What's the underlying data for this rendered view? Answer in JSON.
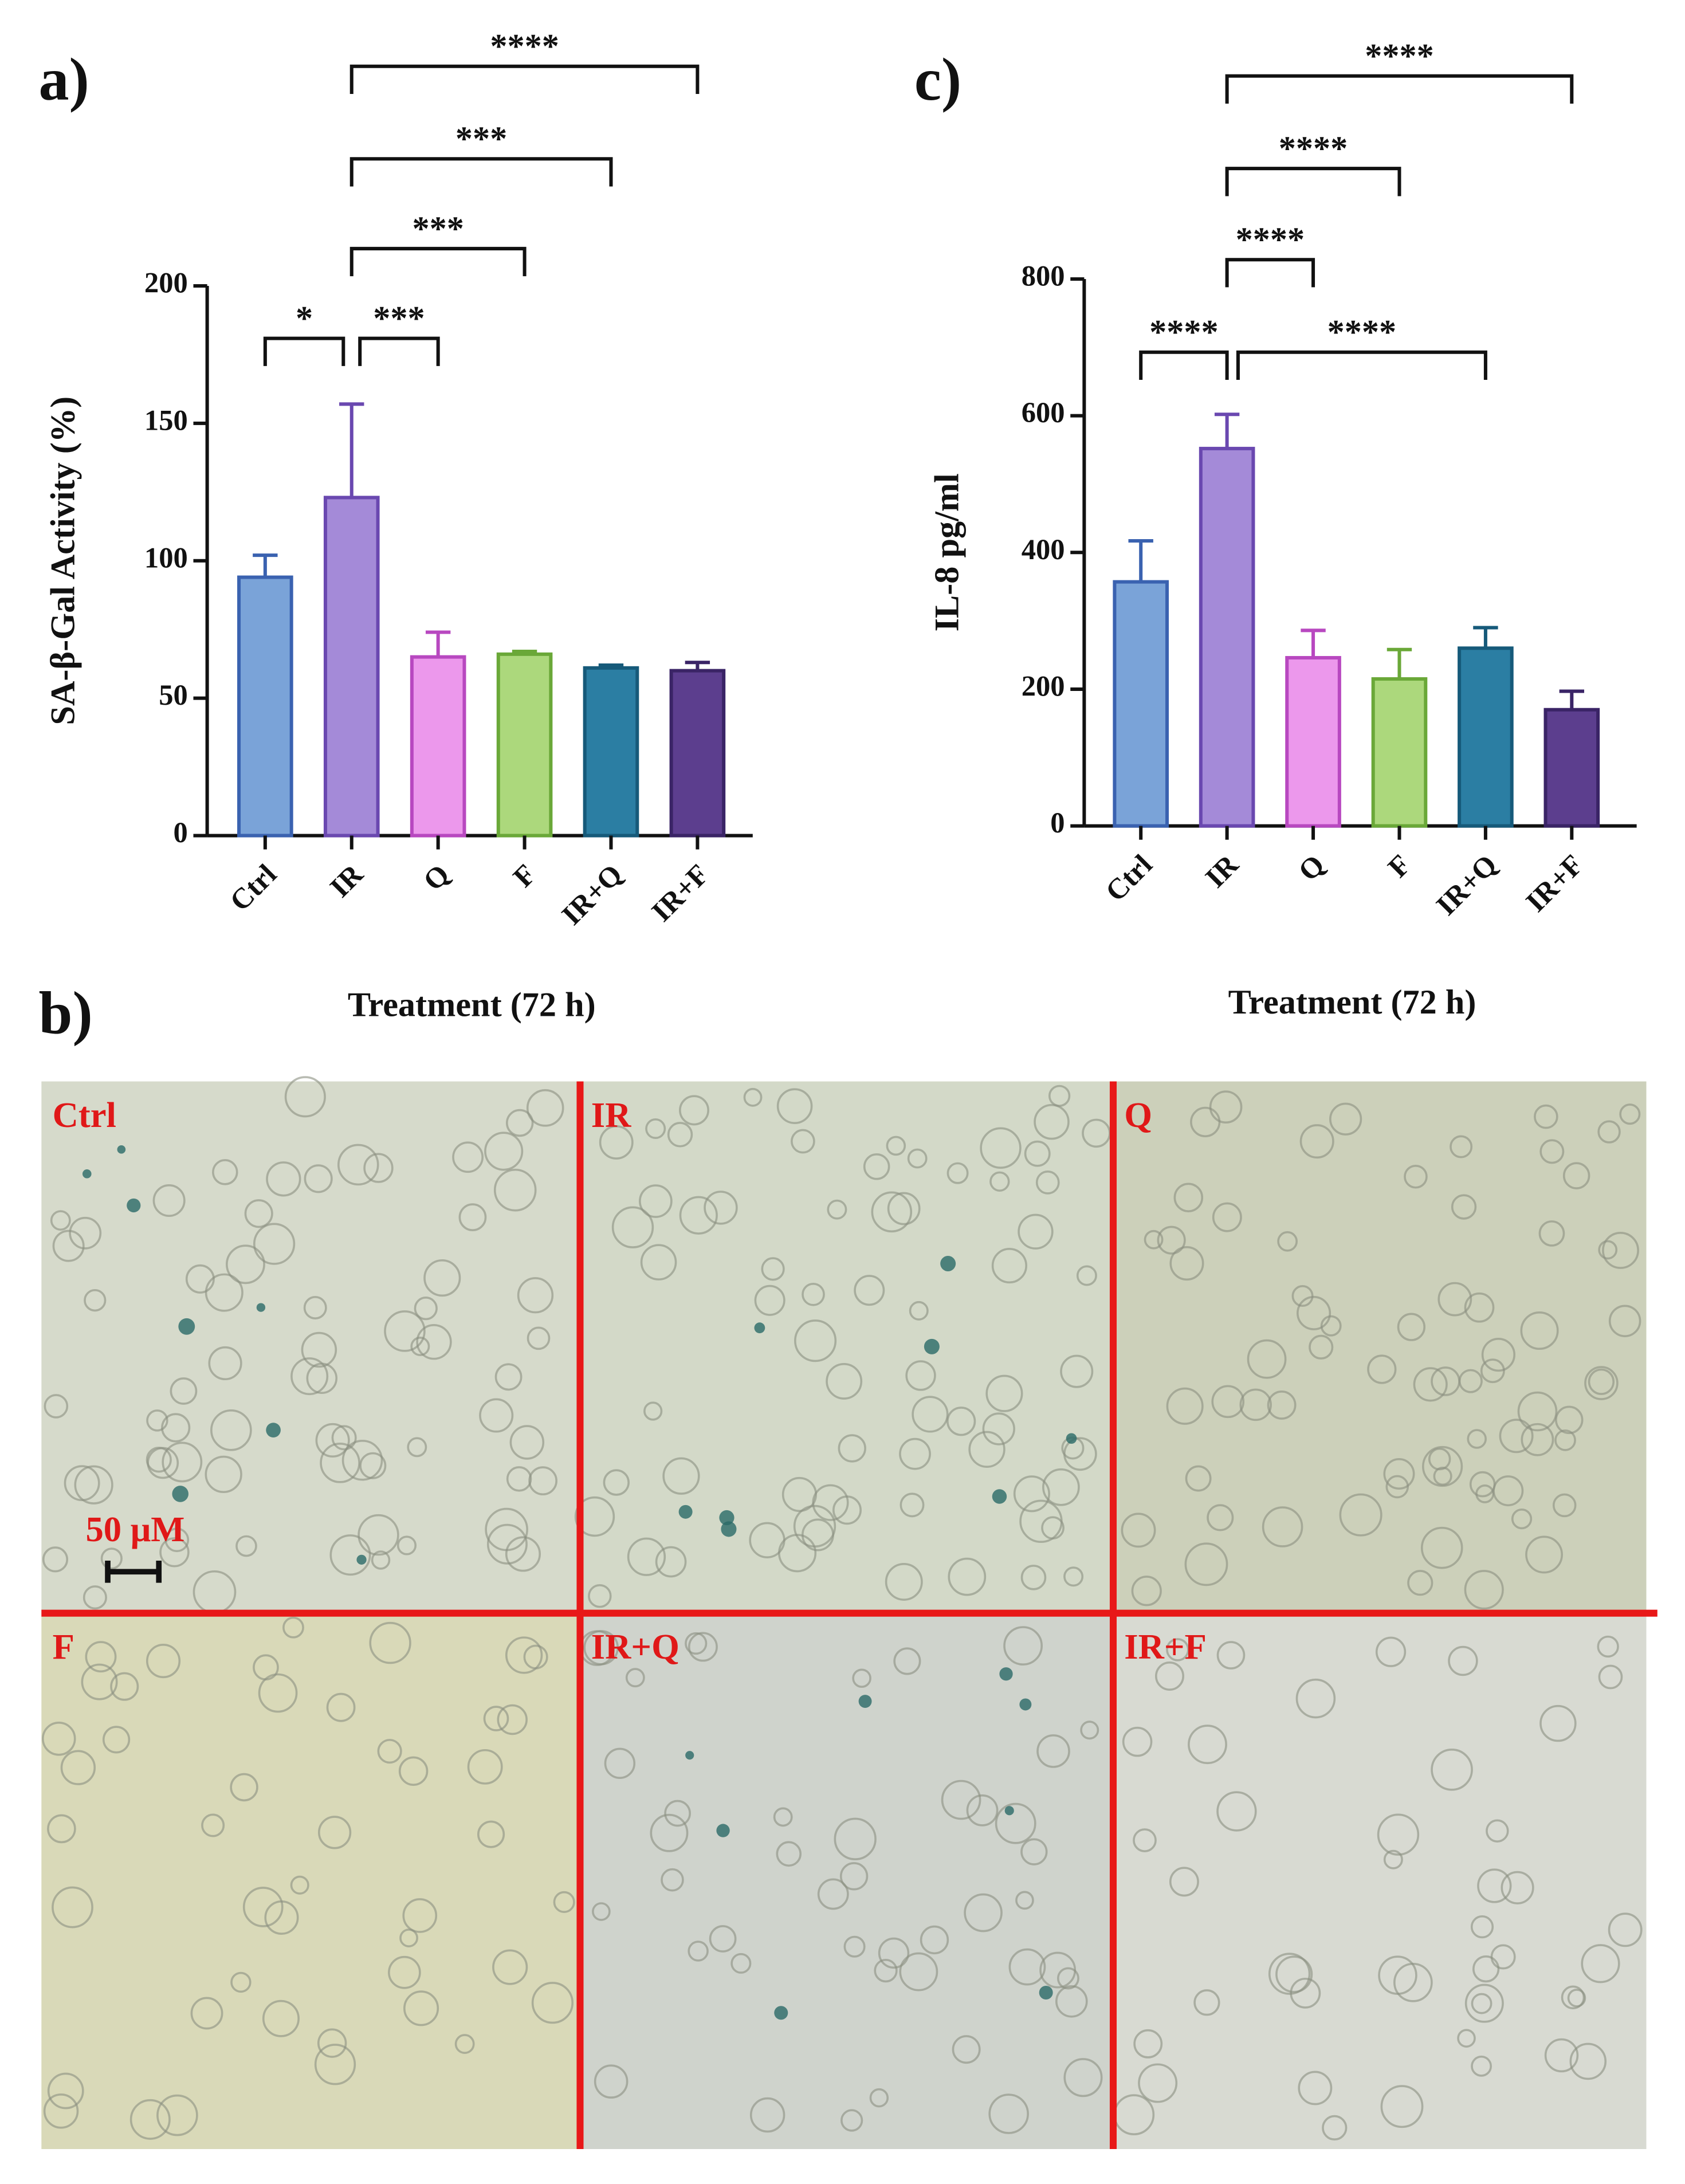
{
  "chart_data": [
    {
      "type": "bar",
      "panel_label": "a)",
      "ylabel": "SA-β-Gal Activity (%)",
      "xlabel": "Treatment (72 h)",
      "categories": [
        "Ctrl",
        "IR",
        "Q",
        "F",
        "IR+Q",
        "IR+F"
      ],
      "values": [
        94,
        123,
        65,
        66,
        61,
        60
      ],
      "errors": [
        8,
        34,
        9,
        1,
        1,
        3
      ],
      "colors": [
        "#7aa3d8",
        "#a48ad8",
        "#ec98ec",
        "#acd87c",
        "#2b7ea3",
        "#5c3e8e"
      ],
      "edge_colors": [
        "#3a62b0",
        "#6a48b0",
        "#b848c0",
        "#6aa838",
        "#165a7a",
        "#3a2466"
      ],
      "ylim": [
        0,
        200
      ],
      "yticks": [
        0,
        50,
        100,
        150,
        200
      ],
      "annotations": [
        "*",
        "***",
        "***",
        "***",
        "****"
      ]
    },
    {
      "type": "bar",
      "panel_label": "c)",
      "ylabel": "IL-8 pg/ml",
      "xlabel": "Treatment (72 h)",
      "categories": [
        "Ctrl",
        "IR",
        "Q",
        "F",
        "IR+Q",
        "IR+F"
      ],
      "values": [
        357,
        552,
        246,
        215,
        260,
        170
      ],
      "errors": [
        60,
        50,
        40,
        43,
        30,
        27
      ],
      "colors": [
        "#7aa3d8",
        "#a48ad8",
        "#ec98ec",
        "#acd87c",
        "#2b7ea3",
        "#5c3e8e"
      ],
      "edge_colors": [
        "#3a62b0",
        "#6a48b0",
        "#b848c0",
        "#6aa838",
        "#165a7a",
        "#3a2466"
      ],
      "ylim": [
        0,
        800
      ],
      "yticks": [
        0,
        200,
        400,
        600,
        800
      ],
      "annotations": [
        "****",
        "****",
        "****",
        "****",
        "****"
      ]
    }
  ],
  "micrograph": {
    "panel_label": "b)",
    "panels": [
      "Ctrl",
      "IR",
      "Q",
      "F",
      "IR+Q",
      "IR+F"
    ],
    "scale_bar": "50 μM"
  }
}
